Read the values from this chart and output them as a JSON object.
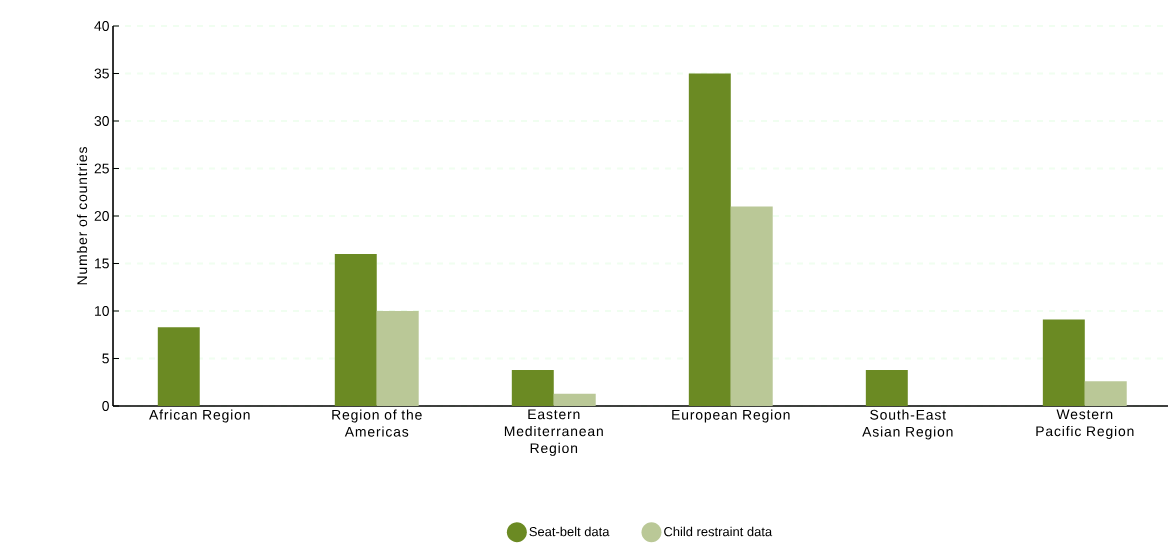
{
  "chart_data": {
    "type": "bar",
    "ylabel": "Number of countries",
    "categories": [
      "African Region",
      "Region of the Americas",
      "Eastern Mediterranean Region",
      "European Region",
      "South-East Asian Region",
      "Western Pacific Region"
    ],
    "series": [
      {
        "name": "Seat-belt data",
        "color": "#6b8a23",
        "values": [
          8.3,
          16,
          3.8,
          35,
          3.8,
          9.1
        ]
      },
      {
        "name": "Child restraint data",
        "color": "#bac897",
        "values": [
          null,
          10,
          1.3,
          21,
          null,
          2.6
        ]
      }
    ],
    "ylim": [
      0,
      40
    ],
    "yticks": [
      0,
      5,
      10,
      15,
      20,
      25,
      30,
      35,
      40
    ],
    "grid": "y",
    "legend": "bottom",
    "marker": "circle"
  }
}
